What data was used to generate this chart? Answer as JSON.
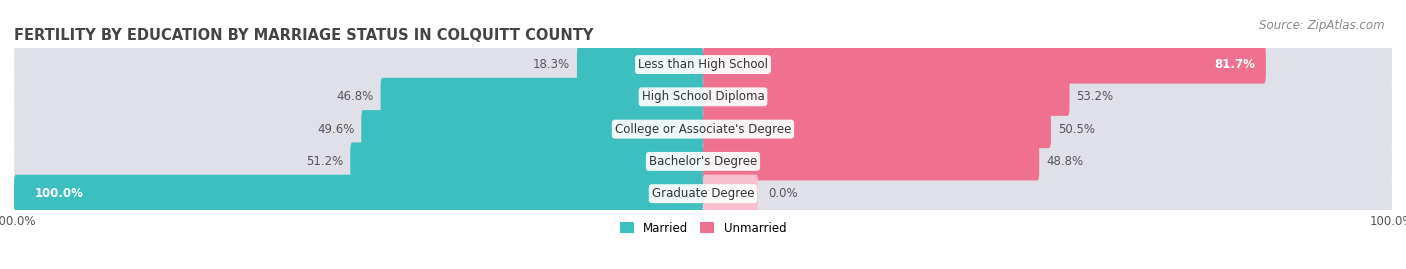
{
  "title": "FERTILITY BY EDUCATION BY MARRIAGE STATUS IN COLQUITT COUNTY",
  "source": "Source: ZipAtlas.com",
  "categories": [
    "Less than High School",
    "High School Diploma",
    "College or Associate's Degree",
    "Bachelor's Degree",
    "Graduate Degree"
  ],
  "married": [
    18.3,
    46.8,
    49.6,
    51.2,
    100.0
  ],
  "unmarried": [
    81.7,
    53.2,
    50.5,
    48.8,
    0.0
  ],
  "married_color": "#3DBFBF",
  "unmarried_color": "#F07090",
  "unmarried_bg_color": "#F9C0D0",
  "bar_bg_color": "#E0E0E8",
  "row_bg_even": "#F2F2F6",
  "row_bg_odd": "#FFFFFF",
  "background_color": "#FFFFFF",
  "title_fontsize": 10.5,
  "source_fontsize": 8.5,
  "label_fontsize": 8.5,
  "cat_fontsize": 8.5,
  "bar_height": 0.62,
  "figsize": [
    14.06,
    2.69
  ],
  "dpi": 100
}
